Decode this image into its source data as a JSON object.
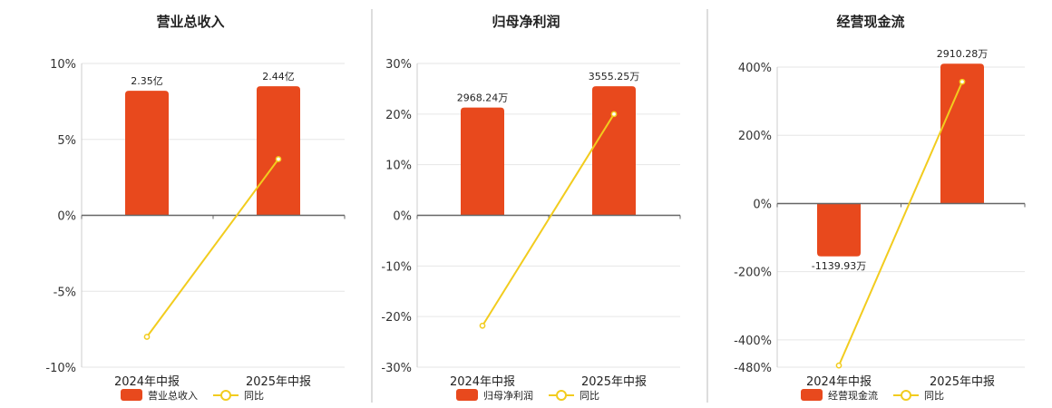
{
  "colors": {
    "bar": "#E8491D",
    "line": "#F2CC1E",
    "axis": "#666666",
    "grid": "#e6e6e6",
    "divider": "#bbbbbb"
  },
  "chart_data": [
    {
      "type": "bar",
      "title": "营业总收入",
      "categories": [
        "2024年中报",
        "2025年中报"
      ],
      "y_ticks": [
        "10%",
        "5%",
        "0%",
        "-5%",
        "-10%"
      ],
      "ylim": [
        -10,
        10
      ],
      "series": [
        {
          "name": "营业总收入",
          "type": "bar",
          "values": [
            8.2,
            8.5
          ],
          "labels": [
            "2.35亿",
            "2.44亿"
          ]
        },
        {
          "name": "同比",
          "type": "line",
          "values": [
            -8.0,
            3.7
          ]
        }
      ],
      "legend": "bottom-center",
      "grid": true
    },
    {
      "type": "bar",
      "title": "归母净利润",
      "categories": [
        "2024年中报",
        "2025年中报"
      ],
      "y_ticks": [
        "30%",
        "20%",
        "10%",
        "0%",
        "-10%",
        "-20%",
        "-30%"
      ],
      "ylim": [
        -30,
        30
      ],
      "series": [
        {
          "name": "归母净利润",
          "type": "bar",
          "values": [
            21.3,
            25.5
          ],
          "labels": [
            "2968.24万",
            "3555.25万"
          ]
        },
        {
          "name": "同比",
          "type": "line",
          "values": [
            -21.8,
            20.0
          ]
        }
      ],
      "legend": "bottom-center",
      "grid": true
    },
    {
      "type": "bar",
      "title": "经营现金流",
      "categories": [
        "2024年中报",
        "2025年中报"
      ],
      "y_ticks": [
        "400%",
        "200%",
        "0%",
        "-200%",
        "-400%",
        "-480%"
      ],
      "ylim": [
        -480,
        400
      ],
      "series": [
        {
          "name": "经营现金流",
          "type": "bar",
          "values": [
            -155,
            410
          ],
          "labels": [
            "-1139.93万",
            "2910.28万"
          ]
        },
        {
          "name": "同比",
          "type": "line",
          "values": [
            -475,
            357
          ]
        }
      ],
      "legend": "bottom-center",
      "grid": true
    }
  ]
}
